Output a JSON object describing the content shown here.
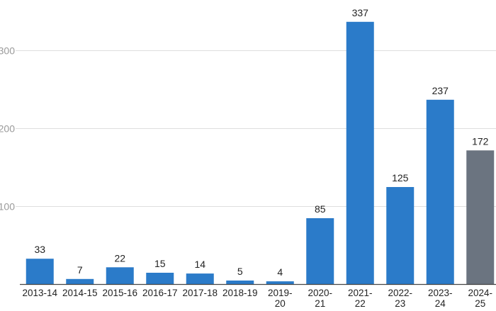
{
  "chart_data": {
    "type": "bar",
    "title": "",
    "xlabel": "",
    "ylabel": "",
    "categories": [
      [
        "2013-14"
      ],
      [
        "2014-15"
      ],
      [
        "2015-16"
      ],
      [
        "2016-17"
      ],
      [
        "2017-18"
      ],
      [
        "2018-19"
      ],
      [
        "2019-",
        "20"
      ],
      [
        "2020-",
        "21"
      ],
      [
        "2021-",
        "22"
      ],
      [
        "2022-",
        "23"
      ],
      [
        "2023-",
        "24"
      ],
      [
        "2024-",
        "25"
      ]
    ],
    "values": [
      33,
      7,
      22,
      15,
      14,
      5,
      4,
      85,
      337,
      125,
      237,
      172
    ],
    "data_labels": [
      "33",
      "7",
      "22",
      "15",
      "14",
      "5",
      "4",
      "85",
      "337",
      "125",
      "237",
      "172"
    ],
    "bar_colors": [
      "#2b7bc9",
      "#2b7bc9",
      "#2b7bc9",
      "#2b7bc9",
      "#2b7bc9",
      "#2b7bc9",
      "#2b7bc9",
      "#2b7bc9",
      "#2b7bc9",
      "#2b7bc9",
      "#2b7bc9",
      "#6b7480"
    ],
    "yticks": [
      100,
      200,
      300
    ],
    "ytick_labels": [
      "100",
      "200",
      "300"
    ],
    "ylim": [
      0,
      360
    ],
    "grid": true,
    "legend": "none"
  }
}
